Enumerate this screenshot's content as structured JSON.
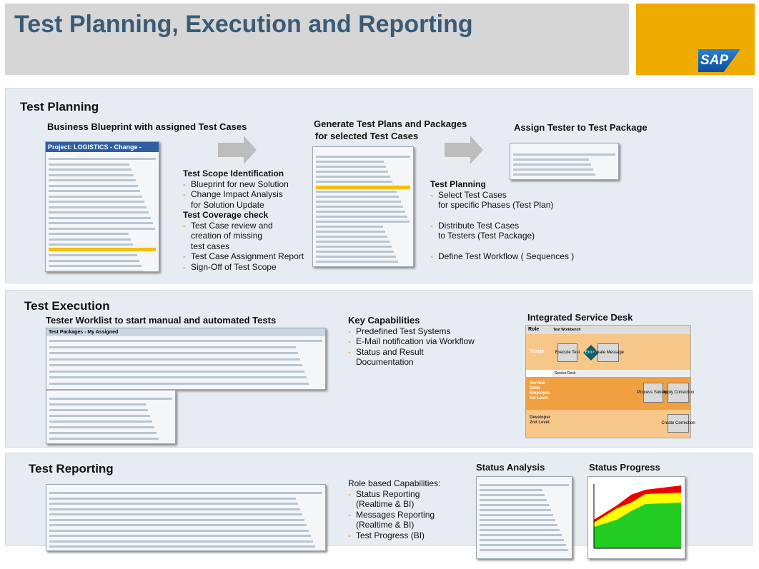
{
  "header": {
    "title": "Test Planning, Execution and Reporting",
    "logo": "SAP"
  },
  "planning": {
    "heading": "Test Planning",
    "blueprint_caption": "Business Blueprint with assigned Test Cases",
    "blueprint_screen_title": "Project: LOGISTICS - Change - Configur",
    "scope_heading": "Test Scope Identification",
    "scope_items": [
      [
        "Blueprint for new Solution"
      ],
      [
        "Change Impact Analysis",
        "for Solution Update"
      ]
    ],
    "coverage_heading": "Test Coverage check",
    "coverage_items": [
      [
        "Test Case review and",
        "creation of missing",
        "test cases"
      ],
      [
        "Test Case Assignment Report"
      ],
      [
        "Sign-Off of Test Scope"
      ]
    ],
    "generate_caption": [
      "Generate Test Plans and Packages",
      "for selected  Test Cases"
    ],
    "assign_caption": "Assign Tester to Test Package",
    "plan_heading": "Test Planning",
    "plan_items": [
      [
        "Select Test Cases",
        "for specific Phases (Test Plan)"
      ],
      [
        "Distribute Test Cases",
        "to Testers (Test Package)"
      ],
      [
        "Define Test Workflow  ( Sequences )"
      ]
    ]
  },
  "execution": {
    "heading": "Test Execution",
    "worklist_caption": "Tester Worklist to start manual and automated Tests",
    "worklist_screen_title": "Test Packages - My Assigned",
    "key_heading": "Key Capabilities",
    "key_items": [
      [
        "Predefined Test Systems"
      ],
      [
        "E-Mail notification via Workflow"
      ],
      [
        "Status and Result",
        "Documentation"
      ]
    ],
    "desk_caption": "Integrated Service Desk",
    "desk": {
      "role": "Role",
      "workbench": "Test Workbench",
      "tester": "Tester",
      "service_desk": "Service Desk",
      "employee": [
        "Service",
        "Desk",
        "Employee",
        "1st Level"
      ],
      "developer": [
        "Developer",
        "2nd Level"
      ],
      "boxes": [
        "Execute Test",
        "Error?",
        "Create Message",
        "Process Solution",
        "Apply Correction",
        "Create Correction"
      ]
    }
  },
  "reporting": {
    "heading": "Test Reporting",
    "role_heading": "Role based Capabilities:",
    "role_items": [
      [
        "Status Reporting",
        "(Realtime & BI)"
      ],
      [
        "Messages Reporting",
        "(Realtime & BI)"
      ],
      [
        "Test Progress (BI)"
      ]
    ],
    "analysis_caption": "Status Analysis",
    "progress_caption": "Status Progress"
  }
}
